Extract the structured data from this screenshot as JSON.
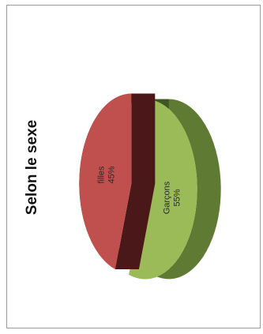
{
  "chart_data": {
    "type": "pie",
    "title": "Selon le sexe",
    "slices": [
      {
        "label": "Garçons",
        "value": 55,
        "display": "55%",
        "color": "#9bbb59",
        "side_color": "#5f7a33",
        "dark_color": "#3f5522"
      },
      {
        "label": "filles",
        "value": 45,
        "display": "45%",
        "color": "#c0504d",
        "side_color": "#6b2523",
        "dark_color": "#4a1818"
      }
    ],
    "three_d": true,
    "exploded": true,
    "legend": "none",
    "orientation": "rotated-90-ccw"
  }
}
